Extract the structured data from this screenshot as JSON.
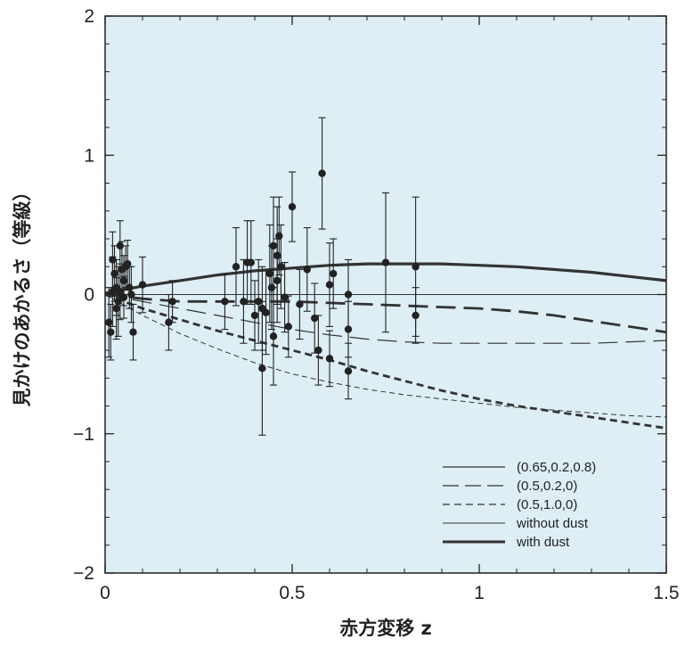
{
  "chart_data": {
    "type": "scatter",
    "title": "",
    "xlabel": "赤方変移 z",
    "ylabel": "見かけのあかるさ（等級）",
    "xlim": [
      0,
      1.5
    ],
    "ylim": [
      -2,
      2
    ],
    "x_ticks": [
      {
        "value": 0,
        "label": "0"
      },
      {
        "value": 0.5,
        "label": "0.5"
      },
      {
        "value": 1,
        "label": "1"
      },
      {
        "value": 1.5,
        "label": "1.5"
      }
    ],
    "y_ticks": [
      {
        "value": 2,
        "label": "2"
      },
      {
        "value": 1,
        "label": "1"
      },
      {
        "value": 0,
        "label": "0"
      },
      {
        "value": -1,
        "label": "−1"
      },
      {
        "value": -2,
        "label": "−2"
      }
    ],
    "plot_background": "#ddeef5",
    "legend_placement": "bottom-right",
    "legend": [
      {
        "label": "(0.65,0.2,0.8)",
        "style": "solid"
      },
      {
        "label": "(0.5,0.2,0)",
        "style": "long-dash"
      },
      {
        "label": "(0.5,1.0,0)",
        "style": "short-dash"
      },
      {
        "label": "without dust",
        "style": "thin"
      },
      {
        "label": "with dust",
        "style": "thick"
      }
    ],
    "series": [
      {
        "style": "thick-solid",
        "x": [
          0,
          0.1,
          0.2,
          0.3,
          0.4,
          0.5,
          0.6,
          0.7,
          0.8,
          0.9,
          1.0,
          1.1,
          1.2,
          1.3,
          1.4,
          1.5
        ],
        "y": [
          0.01,
          0.06,
          0.1,
          0.14,
          0.17,
          0.19,
          0.21,
          0.22,
          0.22,
          0.22,
          0.21,
          0.2,
          0.18,
          0.16,
          0.13,
          0.1
        ]
      },
      {
        "style": "thin-solid",
        "x": [
          0,
          1.5
        ],
        "y": [
          0,
          0
        ]
      },
      {
        "style": "long-dash-thick",
        "x": [
          0,
          0.1,
          0.2,
          0.3,
          0.4,
          0.5,
          0.6,
          0.7,
          0.8,
          0.9,
          1.0,
          1.1,
          1.2,
          1.3,
          1.4,
          1.5
        ],
        "y": [
          0,
          -0.03,
          -0.05,
          -0.05,
          -0.05,
          -0.05,
          -0.06,
          -0.07,
          -0.08,
          -0.09,
          -0.1,
          -0.12,
          -0.15,
          -0.19,
          -0.23,
          -0.27
        ]
      },
      {
        "style": "long-dash-thin",
        "x": [
          0,
          0.1,
          0.2,
          0.3,
          0.4,
          0.5,
          0.6,
          0.7,
          0.8,
          0.9,
          1.0,
          1.1,
          1.2,
          1.3,
          1.4,
          1.5
        ],
        "y": [
          0,
          -0.05,
          -0.1,
          -0.15,
          -0.2,
          -0.25,
          -0.29,
          -0.32,
          -0.34,
          -0.35,
          -0.35,
          -0.35,
          -0.35,
          -0.35,
          -0.34,
          -0.33
        ]
      },
      {
        "style": "short-dash-thick",
        "x": [
          0,
          0.1,
          0.2,
          0.3,
          0.4,
          0.5,
          0.6,
          0.7,
          0.8,
          0.9,
          1.0,
          1.1,
          1.2,
          1.3,
          1.4,
          1.5
        ],
        "y": [
          0,
          -0.1,
          -0.18,
          -0.26,
          -0.33,
          -0.4,
          -0.47,
          -0.55,
          -0.62,
          -0.69,
          -0.75,
          -0.8,
          -0.84,
          -0.88,
          -0.92,
          -0.96
        ]
      },
      {
        "style": "short-dash-thin",
        "x": [
          0,
          0.1,
          0.2,
          0.3,
          0.4,
          0.5,
          0.6,
          0.7,
          0.8,
          0.9,
          1.0,
          1.1,
          1.2,
          1.3,
          1.4,
          1.5
        ],
        "y": [
          0,
          -0.15,
          -0.28,
          -0.39,
          -0.49,
          -0.57,
          -0.63,
          -0.68,
          -0.72,
          -0.75,
          -0.78,
          -0.81,
          -0.83,
          -0.85,
          -0.87,
          -0.88
        ]
      }
    ],
    "points": [
      {
        "x": 0.01,
        "y": -0.2,
        "err": 0.25
      },
      {
        "x": 0.015,
        "y": -0.27,
        "err": 0.2
      },
      {
        "x": 0.02,
        "y": 0.02,
        "err": 0.25
      },
      {
        "x": 0.02,
        "y": 0.25,
        "err": 0.2
      },
      {
        "x": 0.025,
        "y": 0.15,
        "err": 0.2
      },
      {
        "x": 0.03,
        "y": -0.1,
        "err": 0.22
      },
      {
        "x": 0.03,
        "y": 0.05,
        "err": 0.2
      },
      {
        "x": 0.035,
        "y": -0.05,
        "err": 0.25
      },
      {
        "x": 0.04,
        "y": 0.02,
        "err": 0.2
      },
      {
        "x": 0.04,
        "y": 0.35,
        "err": 0.18
      },
      {
        "x": 0.045,
        "y": 0.18,
        "err": 0.2
      },
      {
        "x": 0.05,
        "y": 0.1,
        "err": 0.18
      },
      {
        "x": 0.05,
        "y": -0.02,
        "err": 0.15
      },
      {
        "x": 0.055,
        "y": 0.2,
        "err": 0.15
      },
      {
        "x": 0.06,
        "y": 0.22,
        "err": 0.17
      },
      {
        "x": 0.065,
        "y": 0.05,
        "err": 0.15
      },
      {
        "x": 0.07,
        "y": 0.0,
        "err": 0.2
      },
      {
        "x": 0.075,
        "y": -0.27,
        "err": 0.2
      },
      {
        "x": 0.1,
        "y": 0.07,
        "err": 0.2
      },
      {
        "x": 0.17,
        "y": -0.2,
        "err": 0.2
      },
      {
        "x": 0.18,
        "y": -0.05,
        "err": 0.15
      },
      {
        "x": 0.32,
        "y": -0.05,
        "err": 0.2
      },
      {
        "x": 0.35,
        "y": 0.2,
        "err": 0.28
      },
      {
        "x": 0.37,
        "y": -0.05,
        "err": 0.3
      },
      {
        "x": 0.38,
        "y": 0.23,
        "err": 0.3
      },
      {
        "x": 0.39,
        "y": 0.23,
        "err": 0.3
      },
      {
        "x": 0.4,
        "y": -0.15,
        "err": 0.25
      },
      {
        "x": 0.41,
        "y": -0.05,
        "err": 0.3
      },
      {
        "x": 0.42,
        "y": -0.1,
        "err": 0.3
      },
      {
        "x": 0.42,
        "y": -0.53,
        "err": 0.48
      },
      {
        "x": 0.43,
        "y": -0.13,
        "err": 0.3
      },
      {
        "x": 0.44,
        "y": 0.15,
        "err": 0.35
      },
      {
        "x": 0.445,
        "y": 0.05,
        "err": 0.3
      },
      {
        "x": 0.45,
        "y": -0.3,
        "err": 0.35
      },
      {
        "x": 0.45,
        "y": 0.35,
        "err": 0.35
      },
      {
        "x": 0.46,
        "y": 0.28,
        "err": 0.35
      },
      {
        "x": 0.46,
        "y": 0.1,
        "err": 0.3
      },
      {
        "x": 0.465,
        "y": 0.42,
        "err": 0.28
      },
      {
        "x": 0.47,
        "y": 0.2,
        "err": 0.3
      },
      {
        "x": 0.48,
        "y": -0.02,
        "err": 0.25
      },
      {
        "x": 0.49,
        "y": -0.23,
        "err": 0.22
      },
      {
        "x": 0.5,
        "y": 0.63,
        "err": 0.25
      },
      {
        "x": 0.52,
        "y": -0.07,
        "err": 0.25
      },
      {
        "x": 0.54,
        "y": 0.18,
        "err": 0.3
      },
      {
        "x": 0.56,
        "y": -0.17,
        "err": 0.25
      },
      {
        "x": 0.57,
        "y": -0.4,
        "err": 0.25
      },
      {
        "x": 0.58,
        "y": 0.87,
        "err": 0.4
      },
      {
        "x": 0.6,
        "y": 0.07,
        "err": 0.3
      },
      {
        "x": 0.61,
        "y": 0.15,
        "err": 0.25
      },
      {
        "x": 0.6,
        "y": -0.46,
        "err": 0.2
      },
      {
        "x": 0.65,
        "y": 0.0,
        "err": 0.25
      },
      {
        "x": 0.65,
        "y": -0.25,
        "err": 0.2
      },
      {
        "x": 0.65,
        "y": -0.55,
        "err": 0.2
      },
      {
        "x": 0.75,
        "y": 0.23,
        "err": 0.5
      },
      {
        "x": 0.83,
        "y": 0.2,
        "err": 0.5
      },
      {
        "x": 0.83,
        "y": -0.15,
        "err": 0.2
      }
    ]
  }
}
